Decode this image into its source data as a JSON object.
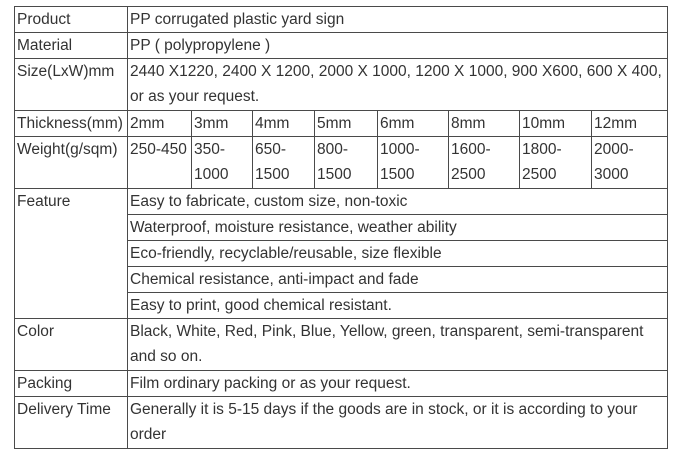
{
  "rows": {
    "product": {
      "label": "Product",
      "value": "PP corrugated plastic yard sign"
    },
    "material": {
      "label": "Material",
      "value": "PP ( polypropylene )"
    },
    "size": {
      "label": "Size(LxW)mm",
      "value": "2440 X1220, 2400 X 1200, 2000 X 1000, 1200 X 1000, 900 X600, 600 X 400, or as your request."
    },
    "thickness": {
      "label": "Thickness(mm)",
      "values": [
        "2mm",
        "3mm",
        "4mm",
        "5mm",
        "6mm",
        "8mm",
        "10mm",
        "12mm"
      ]
    },
    "weight": {
      "label": "Weight(g/sqm)",
      "values": [
        "250-450",
        "350-1000",
        "650-1500",
        "800-1500",
        "1000-1500",
        "1600-2500",
        "1800-2500",
        "2000-3000"
      ]
    },
    "feature": {
      "label": "Feature",
      "values": [
        "Easy to fabricate, custom size, non-toxic",
        "Waterproof, moisture resistance, weather ability",
        "Eco-friendly, recyclable/reusable, size flexible",
        "Chemical resistance, anti-impact and fade",
        "Easy to print, good chemical resistant."
      ]
    },
    "color": {
      "label": "Color",
      "value": "Black, White, Red, Pink, Blue, Yellow, green, transparent, semi-transparent and so on."
    },
    "packing": {
      "label": "Packing",
      "value": "Film ordinary packing or as your request."
    },
    "delivery": {
      "label": "Delivery Time",
      "value": "Generally it is 5-15 days if the goods are in stock, or it is according to your order"
    }
  }
}
